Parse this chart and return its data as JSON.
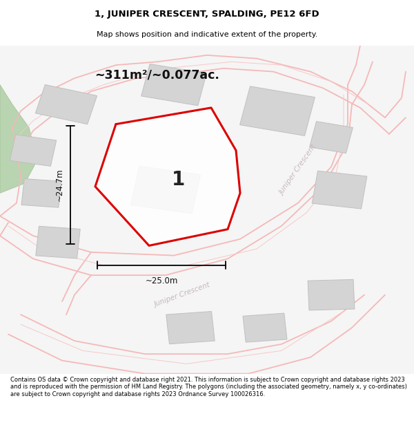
{
  "title_line1": "1, JUNIPER CRESCENT, SPALDING, PE12 6FD",
  "title_line2": "Map shows position and indicative extent of the property.",
  "area_text": "~311m²/~0.077ac.",
  "dim_width": "~25.0m",
  "dim_height": "~24.7m",
  "plot_number": "1",
  "footer_text": "Contains OS data © Crown copyright and database right 2021. This information is subject to Crown copyright and database rights 2023 and is reproduced with the permission of HM Land Registry. The polygons (including the associated geometry, namely x, y co-ordinates) are subject to Crown copyright and database rights 2023 Ordnance Survey 100026316.",
  "plot_outline_color": "#dd0000",
  "road_color": "#f5b8b8",
  "building_color": "#d4d4d4",
  "building_outline": "#c0c0c0",
  "map_bg": "#f7f7f7",
  "white_bg": "#ffffff",
  "green_color": "#b8d4b0"
}
